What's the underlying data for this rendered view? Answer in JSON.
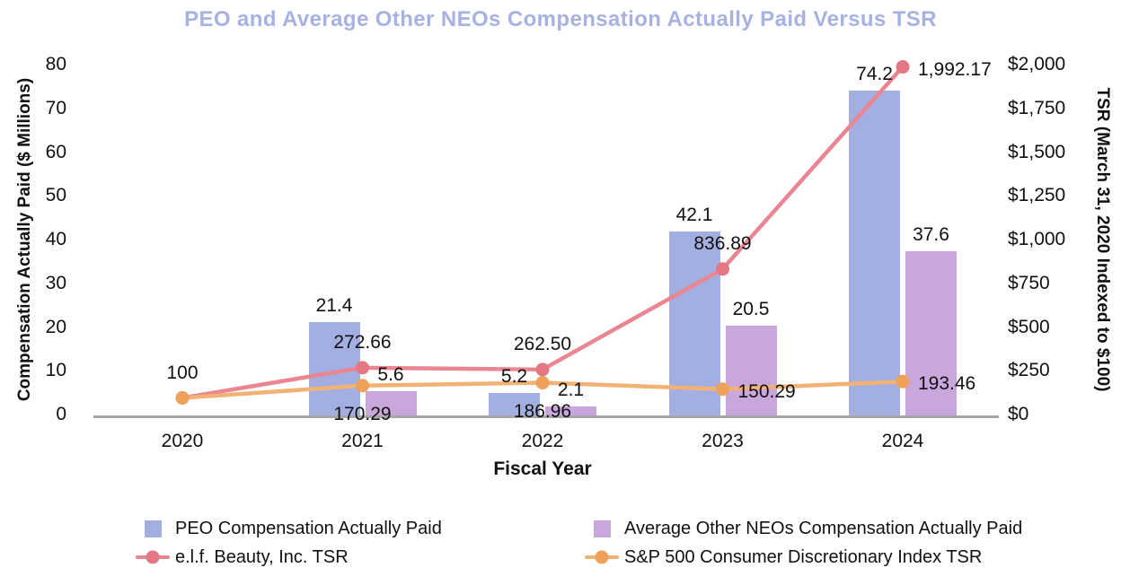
{
  "title": "PEO and Average Other NEOs Compensation Actually Paid Versus TSR",
  "colors": {
    "title": "#A7B2E3",
    "peo_bar": "#A3AFE0",
    "neo_bar": "#C9A7DD",
    "elf_line": "#EA8592",
    "elf_dot": "#E57683",
    "sp500_line": "#F2B274",
    "sp500_dot": "#EDA159",
    "axis_line": "#A6A6A6",
    "text": "#111111"
  },
  "chart_data": {
    "type": "bar",
    "subtype": "combo bar + line, dual axis",
    "title": "PEO and Average Other NEOs Compensation Actually Paid Versus TSR",
    "categories": [
      "2020",
      "2021",
      "2022",
      "2023",
      "2024"
    ],
    "x_axis": {
      "label": "Fiscal Year"
    },
    "left_axis": {
      "label": "Compensation Actually Paid ($ Millions)",
      "range": [
        0,
        80
      ],
      "ticks": [
        0,
        10,
        20,
        30,
        40,
        50,
        60,
        70,
        80
      ],
      "tick_labels": [
        "0",
        "10",
        "20",
        "30",
        "40",
        "50",
        "60",
        "70",
        "80"
      ]
    },
    "right_axis": {
      "label": "TSR (March 31, 2020 Indexed to $100)",
      "range": [
        0,
        2000
      ],
      "ticks": [
        0,
        250,
        500,
        750,
        1000,
        1250,
        1500,
        1750,
        2000
      ],
      "tick_labels": [
        "$0",
        "$250",
        "$500",
        "$750",
        "$1,000",
        "$1,250",
        "$1,500",
        "$1,750",
        "$2,000"
      ]
    },
    "grid": false,
    "legend_position": "bottom-two-columns",
    "bar_series": [
      {
        "name": "PEO Compensation Actually Paid",
        "axis": "left",
        "color_key": "peo_bar",
        "values": [
          null,
          21.4,
          5.2,
          42.1,
          74.2
        ],
        "labels": [
          "",
          "21.4",
          "5.2",
          "42.1",
          "74.2"
        ]
      },
      {
        "name": "Average Other NEOs Compensation Actually Paid",
        "axis": "left",
        "color_key": "neo_bar",
        "values": [
          null,
          5.6,
          2.1,
          20.5,
          37.6
        ],
        "labels": [
          "",
          "5.6",
          "2.1",
          "20.5",
          "37.6"
        ]
      }
    ],
    "line_series": [
      {
        "name": "e.l.f. Beauty, Inc. TSR",
        "axis": "right",
        "color_key": "elf_line",
        "dot_color_key": "elf_dot",
        "values": [
          100,
          272.66,
          262.5,
          836.89,
          1992.17
        ],
        "labels": [
          "100",
          "272.66",
          "262.50",
          "836.89",
          "1,992.17"
        ],
        "label_anchors": [
          "above",
          "above",
          "above",
          "above",
          "right"
        ]
      },
      {
        "name": "S&P 500 Consumer Discretionary Index TSR",
        "axis": "right",
        "color_key": "sp500_line",
        "dot_color_key": "sp500_dot",
        "values": [
          100,
          170.29,
          186.96,
          150.29,
          193.46
        ],
        "labels": [
          "",
          "170.29",
          "186.96",
          "150.29",
          "193.46"
        ],
        "label_anchors": [
          null,
          "below",
          "below",
          "right",
          "right"
        ]
      }
    ]
  },
  "legend": {
    "items": [
      {
        "label": "PEO Compensation Actually Paid",
        "marker": "square",
        "color_key": "peo_bar"
      },
      {
        "label": "Average Other NEOs Compensation Actually Paid",
        "marker": "square",
        "color_key": "neo_bar"
      },
      {
        "label": "e.l.f. Beauty, Inc. TSR",
        "marker": "line-dot",
        "color_key": "elf_line",
        "dot_color_key": "elf_dot"
      },
      {
        "label": "S&P 500 Consumer Discretionary Index TSR",
        "marker": "line-dot",
        "color_key": "sp500_line",
        "dot_color_key": "sp500_dot"
      }
    ]
  }
}
